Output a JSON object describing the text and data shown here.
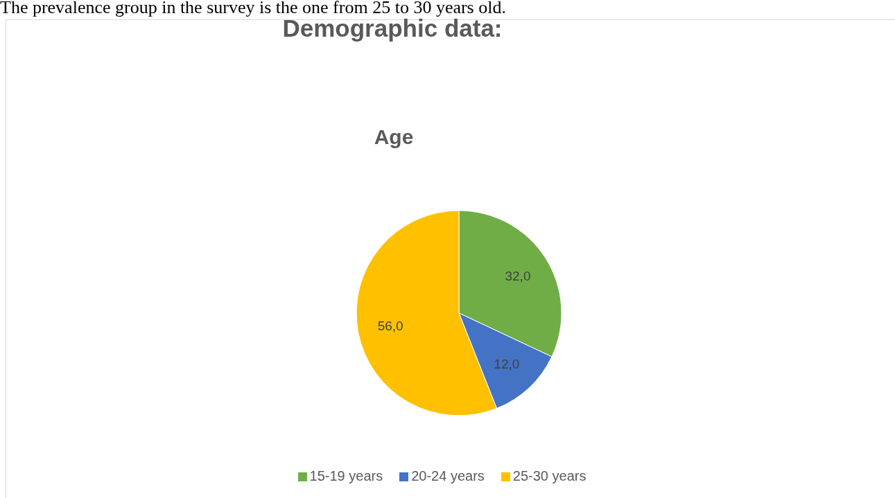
{
  "chart_data": {
    "type": "pie",
    "title": "Demographic data:",
    "subtitle": "Age",
    "categories": [
      "15-19 years",
      "20-24 years",
      "25-30 years"
    ],
    "values": [
      32,
      12,
      56
    ],
    "colors": [
      "#70ad47",
      "#4472c4",
      "#ffc000"
    ],
    "value_labels": [
      "32,0",
      "12,0",
      "56,0"
    ],
    "legend": "bottom",
    "annotations": [
      "The prevalence group in the survey is the one from 25 to 30 years old."
    ]
  }
}
